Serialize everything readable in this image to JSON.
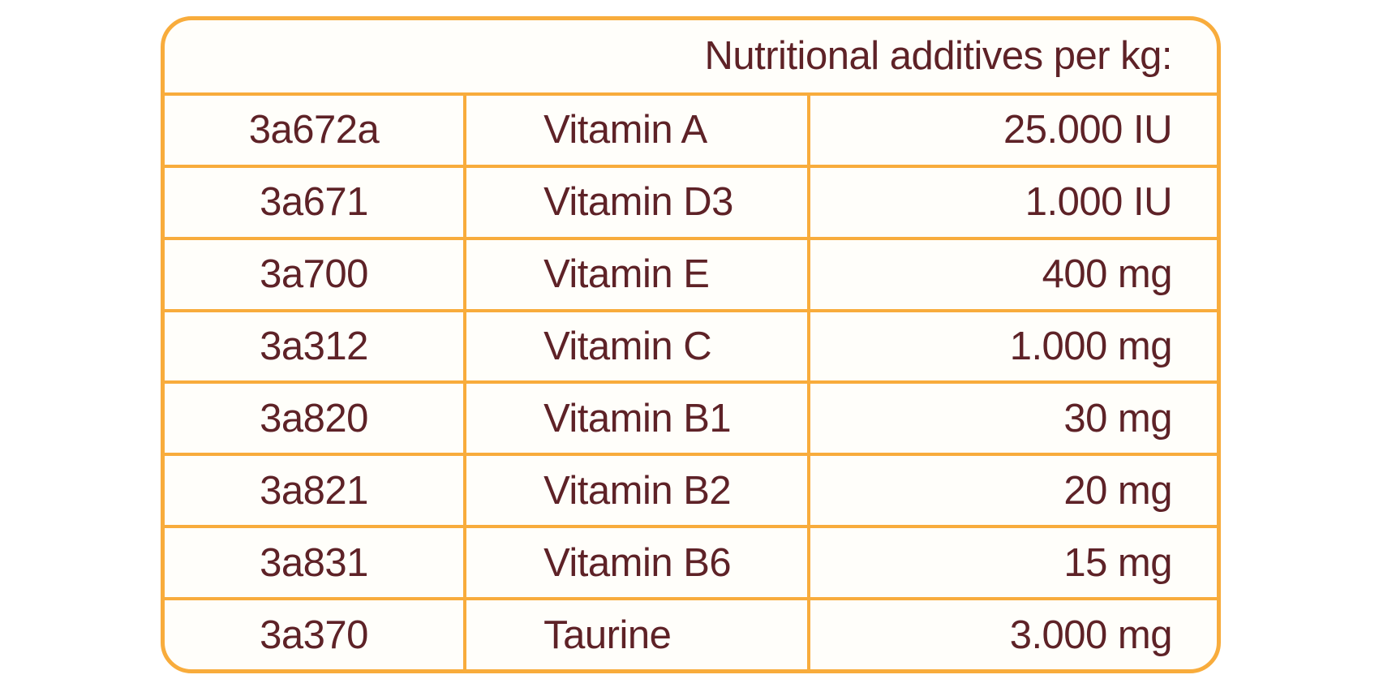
{
  "table": {
    "header": "Nutritional additives per kg:",
    "columns": [
      "code",
      "name",
      "amount"
    ],
    "rows": [
      {
        "code": "3a672a",
        "name": "Vitamin A",
        "amount": "25.000 IU"
      },
      {
        "code": "3a671",
        "name": "Vitamin D3",
        "amount": "1.000 IU"
      },
      {
        "code": "3a700",
        "name": "Vitamin E",
        "amount": "400 mg"
      },
      {
        "code": "3a312",
        "name": "Vitamin C",
        "amount": "1.000 mg"
      },
      {
        "code": "3a820",
        "name": "Vitamin B1",
        "amount": "30 mg"
      },
      {
        "code": "3a821",
        "name": "Vitamin B2",
        "amount": "20 mg"
      },
      {
        "code": "3a831",
        "name": "Vitamin B6",
        "amount": "15 mg"
      },
      {
        "code": "3a370",
        "name": "Taurine",
        "amount": "3.000 mg"
      }
    ],
    "colors": {
      "border": "#f8ac3c",
      "text": "#5e2227",
      "cell_background": "#fffefa"
    }
  }
}
